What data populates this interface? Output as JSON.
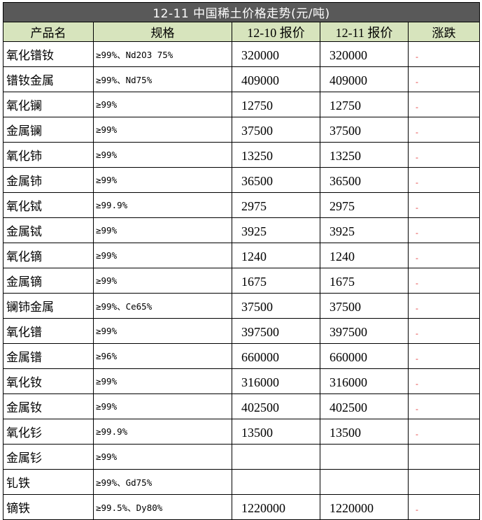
{
  "title": "12-11 中国稀土价格走势(元/吨)",
  "headers": {
    "product": "产品名",
    "spec": "规格",
    "price_prev": "12-10 报价",
    "price_curr": "12-11 报价",
    "change": "涨跌"
  },
  "rows": [
    {
      "name": "氧化镨钕",
      "spec": "≥99%、Nd2O3 75%",
      "prev": "320000",
      "curr": "320000",
      "change": "-"
    },
    {
      "name": "镨钕金属",
      "spec": "≥99%、Nd75%",
      "prev": "409000",
      "curr": "409000",
      "change": "-"
    },
    {
      "name": "氧化镧",
      "spec": "≥99%",
      "prev": "12750",
      "curr": "12750",
      "change": "-"
    },
    {
      "name": "金属镧",
      "spec": "≥99%",
      "prev": "37500",
      "curr": "37500",
      "change": "-"
    },
    {
      "name": "氧化铈",
      "spec": "≥99%",
      "prev": "13250",
      "curr": "13250",
      "change": "-"
    },
    {
      "name": "金属铈",
      "spec": "≥99%",
      "prev": "36500",
      "curr": "36500",
      "change": "-"
    },
    {
      "name": "氧化铽",
      "spec": "≥99.9%",
      "prev": "2975",
      "curr": "2975",
      "change": "-"
    },
    {
      "name": "金属铽",
      "spec": "≥99%",
      "prev": "3925",
      "curr": "3925",
      "change": "-"
    },
    {
      "name": "氧化镝",
      "spec": "≥99%",
      "prev": "1240",
      "curr": "1240",
      "change": "-"
    },
    {
      "name": "金属镝",
      "spec": "≥99%",
      "prev": "1675",
      "curr": "1675",
      "change": "-"
    },
    {
      "name": "镧铈金属",
      "spec": "≥99%、Ce65%",
      "prev": "37500",
      "curr": "37500",
      "change": "-"
    },
    {
      "name": "氧化镨",
      "spec": "≥99%",
      "prev": "397500",
      "curr": "397500",
      "change": "-"
    },
    {
      "name": "金属镨",
      "spec": "≥96%",
      "prev": "660000",
      "curr": "660000",
      "change": "-"
    },
    {
      "name": "氧化钕",
      "spec": "≥99%",
      "prev": "316000",
      "curr": "316000",
      "change": "-"
    },
    {
      "name": "金属钕",
      "spec": "≥99%",
      "prev": "402500",
      "curr": "402500",
      "change": "-"
    },
    {
      "name": "氧化钐",
      "spec": "≥99.9%",
      "prev": "13500",
      "curr": "13500",
      "change": "-"
    },
    {
      "name": "金属钐",
      "spec": "≥99%",
      "prev": "",
      "curr": "",
      "change": ""
    },
    {
      "name": "钆铁",
      "spec": "≥99%、Gd75%",
      "prev": "",
      "curr": "",
      "change": ""
    },
    {
      "name": "镝铁",
      "spec": "≥99.5%、Dy80%",
      "prev": "1220000",
      "curr": "1220000",
      "change": "-"
    }
  ]
}
